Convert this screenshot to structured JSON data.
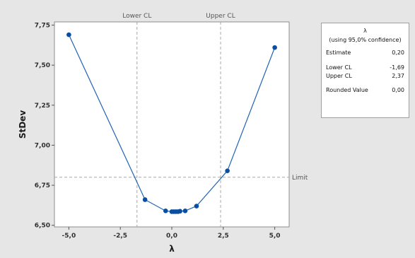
{
  "chart_data": {
    "type": "line",
    "xlabel": "λ",
    "ylabel": "StDev",
    "xlim": [
      -5.7,
      5.7
    ],
    "ylim": [
      6.49,
      7.77
    ],
    "xticks": [
      -5,
      -2.5,
      0,
      2.5,
      5
    ],
    "xtick_labels": [
      "-5,0",
      "-2,5",
      "0,0",
      "2,5",
      "5,0"
    ],
    "yticks": [
      6.5,
      6.75,
      7.0,
      7.25,
      7.5,
      7.75
    ],
    "ytick_labels": [
      "6,50",
      "6,75",
      "7,00",
      "7,25",
      "7,50",
      "7,75"
    ],
    "grid": false,
    "series": [
      {
        "x": [
          -5,
          -1.3,
          -0.3,
          0,
          0.1,
          0.2,
          0.3,
          0.4,
          0.65,
          1.2,
          2.7,
          5
        ],
        "y": [
          7.69,
          6.66,
          6.59,
          6.585,
          6.585,
          6.585,
          6.585,
          6.588,
          6.59,
          6.62,
          6.84,
          7.61
        ]
      }
    ],
    "reference_lines": {
      "vertical": [
        {
          "label": "Lower CL",
          "x": -1.69
        },
        {
          "label": "Upper CL",
          "x": 2.37
        }
      ],
      "horizontal": [
        {
          "label": "Limit",
          "y": 6.8
        }
      ]
    }
  },
  "legend": {
    "title": "λ",
    "subtitle": "(using 95,0% confidence)",
    "rows": [
      {
        "label": "Estimate",
        "value": "0,20"
      },
      {
        "label": "Lower CL",
        "value": "-1,69"
      },
      {
        "label": "Upper CL",
        "value": "2,37"
      },
      {
        "label": "Rounded Value",
        "value": "0,00"
      }
    ]
  },
  "colors": {
    "series": "#1f63b5",
    "marker": "#0a4ea2",
    "refline": "#a8a8a8"
  }
}
